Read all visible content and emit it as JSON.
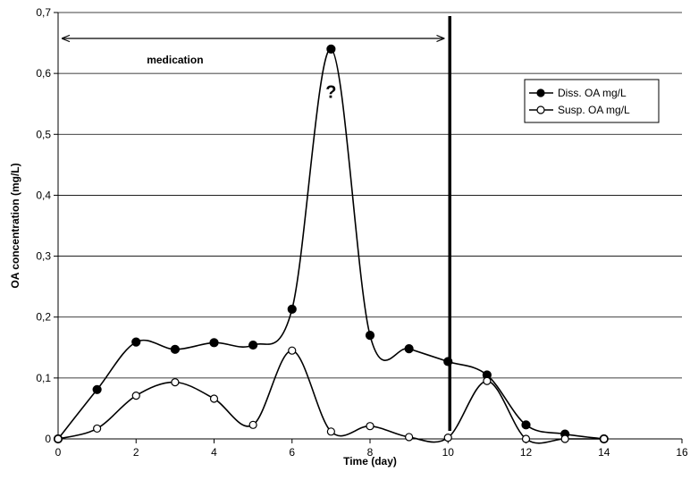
{
  "chart_data": {
    "type": "line",
    "title": "",
    "xlabel": "Time (day)",
    "ylabel": "OA concentration (mg/L)",
    "xlim": [
      0,
      16
    ],
    "ylim": [
      0,
      0.7
    ],
    "x_ticks": [
      "0",
      "2",
      "4",
      "6",
      "8",
      "10",
      "12",
      "14",
      "16"
    ],
    "y_ticks": [
      "0",
      "0,1",
      "0,2",
      "0,3",
      "0,4",
      "0,5",
      "0,6",
      "0,7"
    ],
    "grid": "horizontal",
    "legend_position": "right",
    "series": [
      {
        "name": "Diss. OA mg/L",
        "marker": "filled-circle",
        "x": [
          0,
          1,
          2,
          3,
          4,
          5,
          6,
          7,
          8,
          9,
          10,
          11,
          12,
          13,
          14
        ],
        "values": [
          0,
          0.081,
          0.159,
          0.147,
          0.158,
          0.154,
          0.213,
          0.64,
          0.17,
          0.148,
          0.127,
          0.105,
          0.023,
          0.008,
          0.0
        ]
      },
      {
        "name": "Susp. OA mg/L",
        "marker": "open-circle",
        "x": [
          0,
          1,
          2,
          3,
          4,
          5,
          6,
          7,
          8,
          9,
          10,
          11,
          12,
          13,
          14
        ],
        "values": [
          0,
          0.017,
          0.071,
          0.093,
          0.066,
          0.023,
          0.145,
          0.012,
          0.021,
          0.003,
          0.002,
          0.095,
          0.0,
          0.0,
          0.0
        ]
      }
    ],
    "annotations": {
      "medication_label": "medication",
      "medication_range": [
        0,
        10
      ],
      "question_mark": "?",
      "question_at": [
        7,
        0.57
      ],
      "vertical_line_x": 10
    }
  }
}
